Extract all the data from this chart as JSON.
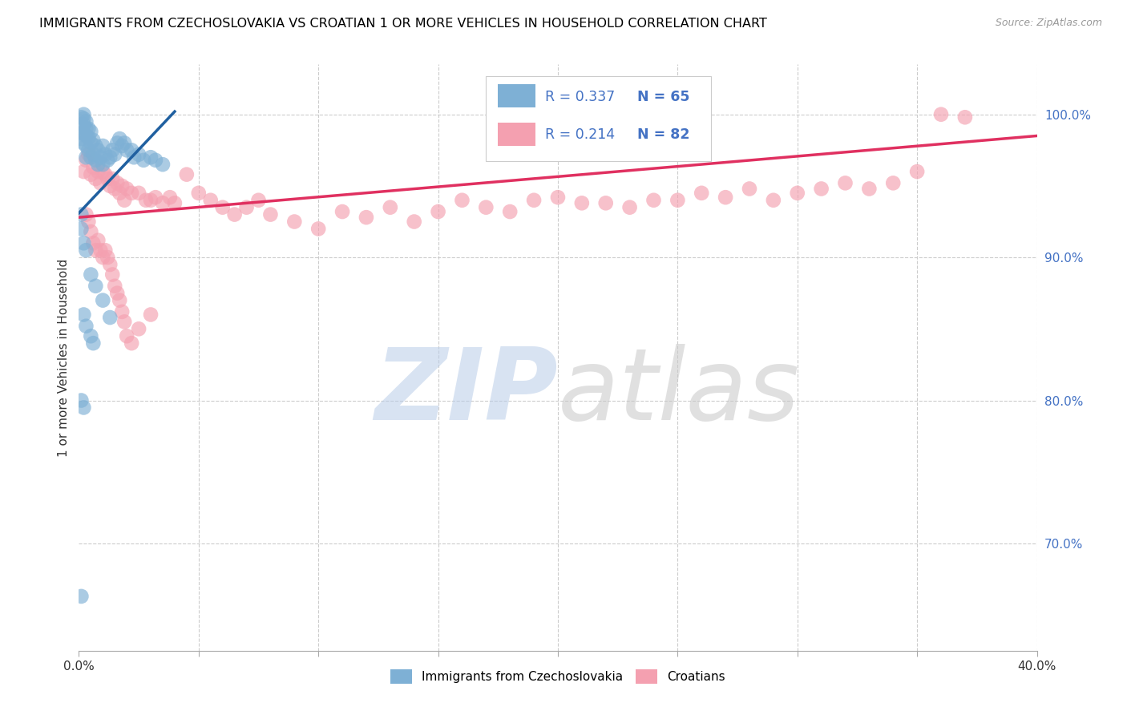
{
  "title": "IMMIGRANTS FROM CZECHOSLOVAKIA VS CROATIAN 1 OR MORE VEHICLES IN HOUSEHOLD CORRELATION CHART",
  "source": "Source: ZipAtlas.com",
  "ylabel": "1 or more Vehicles in Household",
  "xlim": [
    0.0,
    0.4
  ],
  "ylim": [
    0.625,
    1.035
  ],
  "yticks_right": [
    0.7,
    0.8,
    0.9,
    1.0
  ],
  "ytick_right_labels": [
    "70.0%",
    "80.0%",
    "90.0%",
    "100.0%"
  ],
  "blue_color": "#7EB0D5",
  "pink_color": "#F4A0B0",
  "blue_line_color": "#2060A0",
  "pink_line_color": "#E03060",
  "legend_R_blue": "R = 0.337",
  "legend_N_blue": "N = 65",
  "legend_R_pink": "R = 0.214",
  "legend_N_pink": "N = 82",
  "legend_label_blue": "Immigrants from Czechoslovakia",
  "legend_label_pink": "Croatians",
  "grid_color": "#CCCCCC",
  "blue_line_x": [
    0.0,
    0.04
  ],
  "blue_line_y": [
    0.931,
    1.002
  ],
  "pink_line_x": [
    0.0,
    0.4
  ],
  "pink_line_y": [
    0.928,
    0.985
  ]
}
